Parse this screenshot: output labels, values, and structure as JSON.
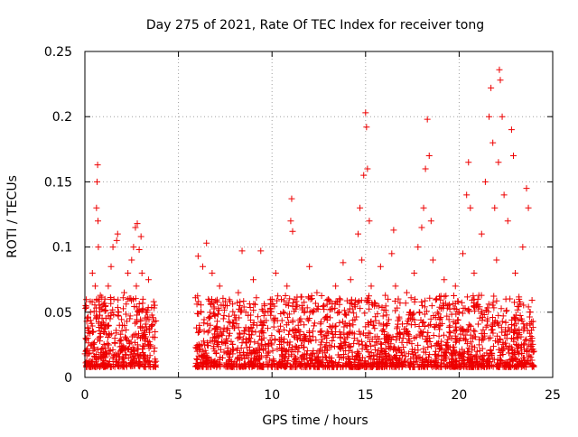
{
  "chart_data": {
    "type": "scatter",
    "title": "Day 275 of 2021, Rate Of TEC Index for receiver tong",
    "xlabel": "GPS time / hours",
    "ylabel": "ROTI / TECUs",
    "xlim": [
      0,
      25
    ],
    "ylim": [
      0,
      0.25
    ],
    "xticks": [
      0,
      5,
      10,
      15,
      20,
      25
    ],
    "yticks": [
      0,
      0.05,
      0.1,
      0.15,
      0.2,
      0.25
    ],
    "xtick_labels": [
      "0",
      "5",
      "10",
      "15",
      "20",
      "25"
    ],
    "ytick_labels": [
      "0",
      "0.05",
      "0.1",
      "0.15",
      "0.2",
      "0.25"
    ],
    "grid": true,
    "marker": "+",
    "color": "#ee0000",
    "data_gap_hours": [
      3.8,
      5.9
    ],
    "sampling_note": "representative subset of points read off the plot",
    "series": [
      {
        "name": "ROTI",
        "points": [
          [
            0.05,
            0.02
          ],
          [
            0.1,
            0.043
          ],
          [
            0.15,
            0.03
          ],
          [
            0.2,
            0.018
          ],
          [
            0.3,
            0.05
          ],
          [
            0.35,
            0.025
          ],
          [
            0.4,
            0.08
          ],
          [
            0.45,
            0.035
          ],
          [
            0.5,
            0.022
          ],
          [
            0.55,
            0.07
          ],
          [
            0.6,
            0.045
          ],
          [
            0.62,
            0.13
          ],
          [
            0.65,
            0.15
          ],
          [
            0.68,
            0.163
          ],
          [
            0.7,
            0.12
          ],
          [
            0.72,
            0.1
          ],
          [
            0.75,
            0.06
          ],
          [
            0.8,
            0.028
          ],
          [
            0.85,
            0.04
          ],
          [
            0.9,
            0.015
          ],
          [
            1.0,
            0.035
          ],
          [
            1.1,
            0.055
          ],
          [
            1.2,
            0.025
          ],
          [
            1.25,
            0.07
          ],
          [
            1.3,
            0.018
          ],
          [
            1.35,
            0.045
          ],
          [
            1.4,
            0.085
          ],
          [
            1.5,
            0.1
          ],
          [
            1.55,
            0.06
          ],
          [
            1.6,
            0.03
          ],
          [
            1.7,
            0.105
          ],
          [
            1.75,
            0.11
          ],
          [
            1.8,
            0.05
          ],
          [
            1.9,
            0.02
          ],
          [
            2.0,
            0.04
          ],
          [
            2.1,
            0.065
          ],
          [
            2.2,
            0.03
          ],
          [
            2.3,
            0.08
          ],
          [
            2.4,
            0.045
          ],
          [
            2.5,
            0.09
          ],
          [
            2.6,
            0.1
          ],
          [
            2.7,
            0.115
          ],
          [
            2.75,
            0.07
          ],
          [
            2.8,
            0.118
          ],
          [
            2.85,
            0.05
          ],
          [
            2.9,
            0.098
          ],
          [
            3.0,
            0.108
          ],
          [
            3.05,
            0.08
          ],
          [
            3.1,
            0.06
          ],
          [
            3.2,
            0.03
          ],
          [
            3.3,
            0.05
          ],
          [
            3.4,
            0.075
          ],
          [
            3.5,
            0.025
          ],
          [
            3.6,
            0.04
          ],
          [
            3.7,
            0.02
          ],
          [
            3.75,
            0.035
          ],
          [
            6.0,
            0.02
          ],
          [
            6.05,
            0.093
          ],
          [
            6.1,
            0.035
          ],
          [
            6.2,
            0.05
          ],
          [
            6.3,
            0.085
          ],
          [
            6.4,
            0.025
          ],
          [
            6.5,
            0.103
          ],
          [
            6.6,
            0.06
          ],
          [
            6.7,
            0.04
          ],
          [
            6.8,
            0.08
          ],
          [
            7.0,
            0.03
          ],
          [
            7.2,
            0.07
          ],
          [
            7.4,
            0.045
          ],
          [
            7.6,
            0.055
          ],
          [
            7.8,
            0.02
          ],
          [
            8.0,
            0.038
          ],
          [
            8.2,
            0.065
          ],
          [
            8.4,
            0.097
          ],
          [
            8.6,
            0.05
          ],
          [
            8.8,
            0.03
          ],
          [
            9.0,
            0.075
          ],
          [
            9.2,
            0.04
          ],
          [
            9.4,
            0.097
          ],
          [
            9.6,
            0.055
          ],
          [
            9.8,
            0.025
          ],
          [
            10.0,
            0.06
          ],
          [
            10.2,
            0.08
          ],
          [
            10.4,
            0.035
          ],
          [
            10.6,
            0.05
          ],
          [
            10.8,
            0.07
          ],
          [
            11.0,
            0.12
          ],
          [
            11.05,
            0.137
          ],
          [
            11.1,
            0.112
          ],
          [
            11.2,
            0.06
          ],
          [
            11.4,
            0.04
          ],
          [
            11.6,
            0.055
          ],
          [
            11.8,
            0.03
          ],
          [
            12.0,
            0.085
          ],
          [
            12.2,
            0.05
          ],
          [
            12.4,
            0.065
          ],
          [
            12.6,
            0.025
          ],
          [
            12.8,
            0.045
          ],
          [
            13.0,
            0.06
          ],
          [
            13.2,
            0.035
          ],
          [
            13.4,
            0.07
          ],
          [
            13.6,
            0.05
          ],
          [
            13.8,
            0.088
          ],
          [
            14.0,
            0.04
          ],
          [
            14.2,
            0.075
          ],
          [
            14.4,
            0.03
          ],
          [
            14.6,
            0.11
          ],
          [
            14.7,
            0.13
          ],
          [
            14.8,
            0.09
          ],
          [
            14.9,
            0.155
          ],
          [
            15.0,
            0.203
          ],
          [
            15.05,
            0.192
          ],
          [
            15.1,
            0.16
          ],
          [
            15.2,
            0.12
          ],
          [
            15.3,
            0.07
          ],
          [
            15.4,
            0.04
          ],
          [
            15.6,
            0.055
          ],
          [
            15.8,
            0.085
          ],
          [
            16.0,
            0.035
          ],
          [
            16.2,
            0.06
          ],
          [
            16.4,
            0.095
          ],
          [
            16.5,
            0.113
          ],
          [
            16.6,
            0.07
          ],
          [
            16.8,
            0.045
          ],
          [
            17.0,
            0.03
          ],
          [
            17.2,
            0.065
          ],
          [
            17.4,
            0.05
          ],
          [
            17.6,
            0.08
          ],
          [
            17.8,
            0.1
          ],
          [
            18.0,
            0.115
          ],
          [
            18.1,
            0.13
          ],
          [
            18.2,
            0.16
          ],
          [
            18.3,
            0.198
          ],
          [
            18.4,
            0.17
          ],
          [
            18.5,
            0.12
          ],
          [
            18.6,
            0.09
          ],
          [
            18.8,
            0.06
          ],
          [
            19.0,
            0.04
          ],
          [
            19.2,
            0.075
          ],
          [
            19.4,
            0.055
          ],
          [
            19.6,
            0.03
          ],
          [
            19.8,
            0.07
          ],
          [
            20.0,
            0.05
          ],
          [
            20.2,
            0.095
          ],
          [
            20.4,
            0.14
          ],
          [
            20.5,
            0.165
          ],
          [
            20.6,
            0.13
          ],
          [
            20.8,
            0.08
          ],
          [
            21.0,
            0.06
          ],
          [
            21.2,
            0.11
          ],
          [
            21.4,
            0.15
          ],
          [
            21.6,
            0.2
          ],
          [
            21.7,
            0.222
          ],
          [
            21.8,
            0.18
          ],
          [
            21.9,
            0.13
          ],
          [
            22.0,
            0.09
          ],
          [
            22.1,
            0.165
          ],
          [
            22.15,
            0.236
          ],
          [
            22.2,
            0.228
          ],
          [
            22.3,
            0.2
          ],
          [
            22.4,
            0.14
          ],
          [
            22.6,
            0.12
          ],
          [
            22.8,
            0.19
          ],
          [
            22.9,
            0.17
          ],
          [
            23.0,
            0.08
          ],
          [
            23.2,
            0.06
          ],
          [
            23.4,
            0.1
          ],
          [
            23.6,
            0.145
          ],
          [
            23.7,
            0.13
          ],
          [
            23.8,
            0.05
          ],
          [
            23.9,
            0.03
          ],
          [
            24.0,
            0.02
          ]
        ]
      }
    ]
  }
}
